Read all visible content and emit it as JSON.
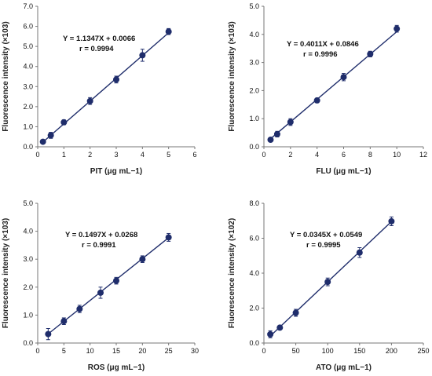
{
  "chart_data": [
    {
      "type": "scatter",
      "xlabel": "PIT (μg mL−1)",
      "ylabel": "Fluorescence intensity (×103)",
      "xlim": [
        0,
        6
      ],
      "ylim": [
        0,
        7
      ],
      "xticks": [
        "0",
        "1",
        "2",
        "3",
        "4",
        "5",
        "6"
      ],
      "yticks": [
        "0.0",
        "1.0",
        "2.0",
        "3.0",
        "4.0",
        "5.0",
        "6.0",
        "7.0"
      ],
      "equation": "Y = 1.1347X + 0.0066",
      "r": "r = 0.9994",
      "fit": {
        "slope": 1.1347,
        "intercept": 0.0066
      },
      "x": [
        0.2,
        0.5,
        1,
        2,
        3,
        4,
        5
      ],
      "y": [
        0.25,
        0.57,
        1.22,
        2.28,
        3.35,
        4.56,
        5.74
      ],
      "err": [
        0.08,
        0.15,
        0.12,
        0.17,
        0.17,
        0.3,
        0.15
      ]
    },
    {
      "type": "scatter",
      "xlabel": "FLU (μg mL−1)",
      "ylabel": "Fluorescence intensity (×103)",
      "xlim": [
        0,
        12
      ],
      "ylim": [
        0,
        5
      ],
      "xticks": [
        "0",
        "2",
        "4",
        "6",
        "8",
        "10",
        "12"
      ],
      "yticks": [
        "0.0",
        "1.0",
        "2.0",
        "3.0",
        "4.0",
        "5.0"
      ],
      "equation": "Y = 0.4011X + 0.0846",
      "r": "r = 0.9996",
      "fit": {
        "slope": 0.4011,
        "intercept": 0.0846
      },
      "x": [
        0.5,
        1,
        2,
        4,
        6,
        8,
        10
      ],
      "y": [
        0.25,
        0.45,
        0.88,
        1.65,
        2.48,
        3.3,
        4.2
      ],
      "err": [
        0.05,
        0.1,
        0.12,
        0.08,
        0.13,
        0.1,
        0.12
      ]
    },
    {
      "type": "scatter",
      "xlabel": "ROS (μg mL−1)",
      "ylabel": "Fluorescence intensity (×103)",
      "xlim": [
        0,
        30
      ],
      "ylim": [
        0,
        5
      ],
      "xticks": [
        "0",
        "5",
        "10",
        "15",
        "20",
        "25",
        "30"
      ],
      "yticks": [
        "0.0",
        "1.0",
        "2.0",
        "3.0",
        "4.0",
        "5.0"
      ],
      "equation": "Y = 0.1497X + 0.0268",
      "r": "r = 0.9991",
      "fit": {
        "slope": 0.1497,
        "intercept": 0.0268
      },
      "x": [
        2,
        5,
        8,
        12,
        15,
        20,
        25
      ],
      "y": [
        0.32,
        0.78,
        1.22,
        1.8,
        2.23,
        3.0,
        3.78
      ],
      "err": [
        0.2,
        0.12,
        0.13,
        0.2,
        0.12,
        0.12,
        0.14
      ]
    },
    {
      "type": "scatter",
      "xlabel": "ATO (μg mL−1)",
      "ylabel": "Fluorescence intensity (×102)",
      "xlim": [
        0,
        250
      ],
      "ylim": [
        0,
        8
      ],
      "xticks": [
        "0",
        "50",
        "100",
        "150",
        "200",
        "250"
      ],
      "yticks": [
        "0.0",
        "2.0",
        "4.0",
        "6.0",
        "8.0"
      ],
      "equation": "Y = 0.0345X + 0.0549",
      "r": "r = 0.9995",
      "fit": {
        "slope": 0.0345,
        "intercept": 0.0549
      },
      "x": [
        10,
        25,
        50,
        100,
        150,
        200
      ],
      "y": [
        0.5,
        0.88,
        1.73,
        3.5,
        5.18,
        6.97
      ],
      "err": [
        0.2,
        0.1,
        0.2,
        0.22,
        0.28,
        0.25
      ]
    }
  ],
  "style": {
    "point_color": "#1f2d6b",
    "line_color": "#1f2d6b",
    "axis_color": "#777777"
  }
}
